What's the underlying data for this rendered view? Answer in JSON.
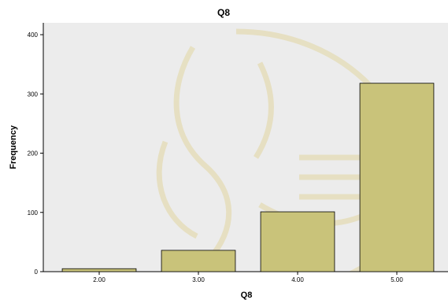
{
  "colors": {
    "plot_background": "#ececec",
    "bar_fill": "#c9c37a",
    "watermark": "#d8c15a"
  },
  "chart_data": {
    "type": "bar",
    "title": "Q8",
    "xlabel": "Q8",
    "ylabel": "Frequency",
    "categories": [
      "2.00",
      "3.00",
      "4.00",
      "5.00"
    ],
    "values": [
      5,
      36,
      101,
      318
    ],
    "ylim": [
      0,
      420
    ],
    "yticks": [
      0,
      100,
      200,
      300,
      400
    ],
    "grid": false,
    "legend": false
  }
}
